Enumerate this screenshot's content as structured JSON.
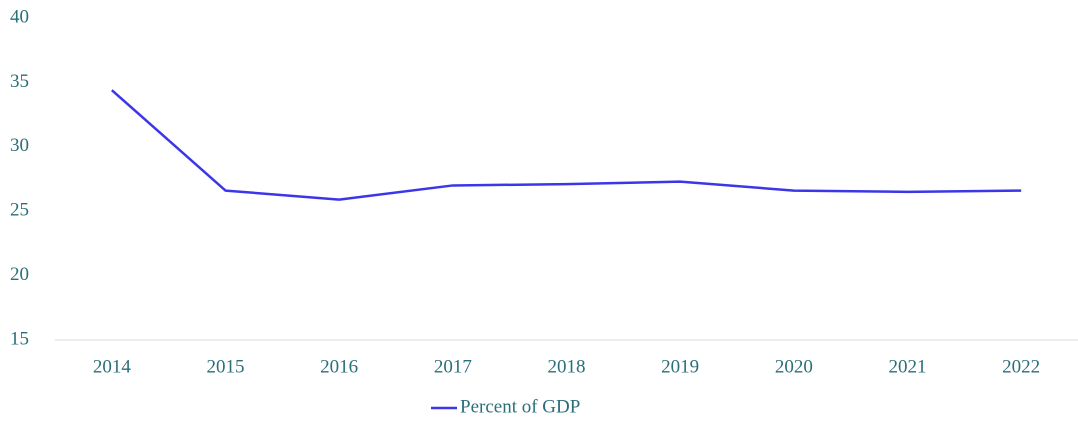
{
  "chart_data": {
    "type": "line",
    "categories": [
      "2014",
      "2015",
      "2016",
      "2017",
      "2018",
      "2019",
      "2020",
      "2021",
      "2022"
    ],
    "series": [
      {
        "name": "Percent of GDP",
        "color": "#3b36e8",
        "values": [
          34.4,
          26.6,
          25.9,
          27.0,
          27.1,
          27.3,
          26.6,
          26.5,
          26.6
        ]
      }
    ],
    "ylim": [
      15,
      40
    ],
    "yticks": [
      15,
      20,
      25,
      30,
      35,
      40
    ],
    "grid": false,
    "legend": "bottom"
  }
}
